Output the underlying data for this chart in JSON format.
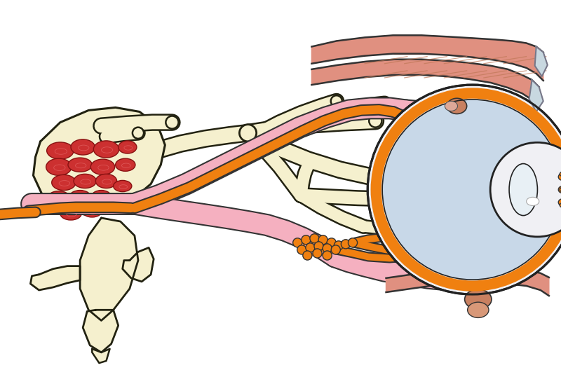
{
  "bg_color": "#ffffff",
  "fig_width": 8.0,
  "fig_height": 5.28,
  "dpi": 100,
  "colors": {
    "cream": "#f5f0ce",
    "cream_stroke": "#222211",
    "pink": "#f5b0c0",
    "pink_stroke": "#333333",
    "orange": "#f08010",
    "orange_stroke": "#333333",
    "salmon": "#e09080",
    "salmon_stroke": "#333333",
    "red": "#cc3030",
    "red_stroke": "#881111",
    "eye_outer": "#f0f0f4",
    "eye_sclera": "#c8d8e8",
    "eye_stroke": "#222222",
    "eye_lens": "#e8f0f4",
    "tendon": "#c8d8e0",
    "muscle_fiber": "#c07858"
  }
}
